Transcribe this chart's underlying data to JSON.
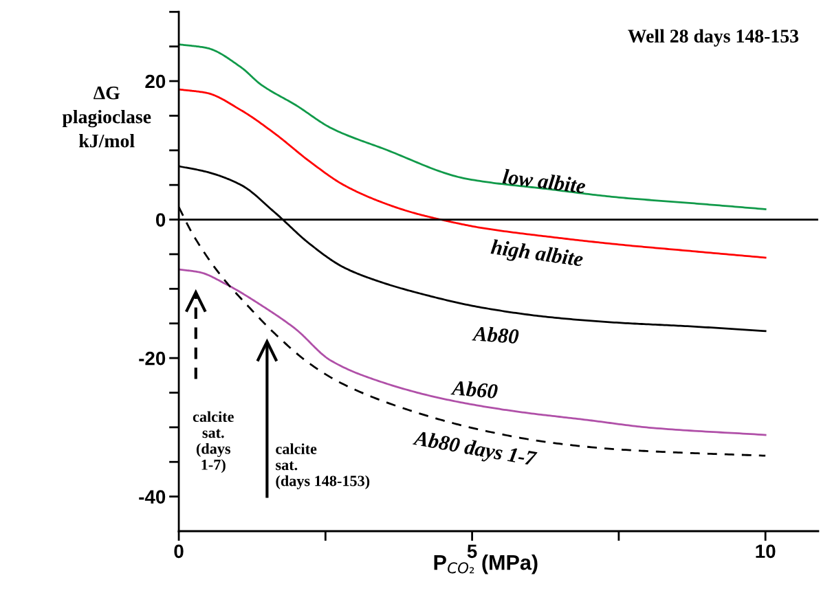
{
  "chart_data": {
    "type": "line",
    "title": "Well 28 days 148-153",
    "xlabel": "P$_{CO₂}$ (MPa)",
    "ylabel": "ΔG\nplagioclase\nkJ/mol",
    "xlim": [
      0,
      10.9
    ],
    "ylim": [
      -45,
      30
    ],
    "xticks": [
      0,
      {
        "value": 2.5,
        "label": null
      },
      5,
      {
        "value": 7.5,
        "label": null
      },
      10
    ],
    "yticks": [
      {
        "value": -40,
        "label": "-40"
      },
      {
        "value": -35,
        "label": null
      },
      {
        "value": -30,
        "label": null
      },
      {
        "value": -25,
        "label": null
      },
      {
        "value": -20,
        "label": "-20"
      },
      {
        "value": -15,
        "label": null
      },
      {
        "value": -10,
        "label": null
      },
      {
        "value": -5,
        "label": null
      },
      0,
      {
        "value": 5,
        "label": null
      },
      {
        "value": 10,
        "label": null
      },
      {
        "value": 15,
        "label": null
      },
      20,
      {
        "value": 25,
        "label": null
      },
      {
        "value": 30,
        "label": null
      }
    ],
    "grid": false,
    "ref_lines": [
      {
        "axis": "y",
        "value": 0,
        "color": "#000000",
        "line_style": "solid"
      }
    ],
    "series": [
      {
        "name": "low albite",
        "color": "#119a4a",
        "x": [
          0,
          0.47,
          1.06,
          1.4,
          2.0,
          2.6,
          3.5,
          4.9,
          6.3,
          7.5,
          8.7,
          10
        ],
        "values": [
          25.3,
          24.8,
          22.0,
          19.5,
          16.5,
          13.2,
          10.2,
          5.9,
          4.4,
          3.2,
          2.4,
          1.5
        ]
      },
      {
        "name": "high albite",
        "color": "#ff0000",
        "x": [
          0,
          0.47,
          1.06,
          1.64,
          2.23,
          2.81,
          3.4,
          3.99,
          4.57,
          5.16,
          6.33,
          7.5,
          8.67,
          10
        ],
        "values": [
          18.8,
          18.3,
          15.8,
          12.4,
          8.4,
          5.0,
          2.7,
          1.0,
          -0.2,
          -1.2,
          -2.5,
          -3.6,
          -4.5,
          -5.5
        ]
      },
      {
        "name": "Ab80",
        "color": "#000000",
        "x": [
          0,
          0.47,
          1.06,
          1.64,
          2.23,
          2.81,
          3.4,
          3.99,
          5.16,
          6.33,
          7.5,
          8.67,
          10
        ],
        "values": [
          7.7,
          6.9,
          5.0,
          1.0,
          -3.5,
          -6.9,
          -8.9,
          -10.4,
          -12.7,
          -14.1,
          -14.9,
          -15.4,
          -16.1
        ]
      },
      {
        "name": "Ab60",
        "color": "#b050a8",
        "x": [
          0,
          0.35,
          0.82,
          1.41,
          1.99,
          2.58,
          3.4,
          4.57,
          5.74,
          6.92,
          8.09,
          10
        ],
        "values": [
          -7.2,
          -7.6,
          -9.4,
          -12.4,
          -15.8,
          -20.3,
          -23.3,
          -26.0,
          -27.7,
          -28.9,
          -30.1,
          -31.1
        ]
      },
      {
        "name": "Ab80 days 1-7",
        "color": "#000000",
        "line_style": "dashed",
        "x": [
          0,
          0.23,
          0.7,
          1.17,
          1.64,
          2.23,
          2.81,
          3.99,
          5.16,
          6.33,
          7.5,
          8.67,
          10
        ],
        "values": [
          1.8,
          -2.0,
          -7.9,
          -12.4,
          -16.5,
          -20.8,
          -23.8,
          -27.7,
          -30.4,
          -32.2,
          -33.2,
          -33.7,
          -34.1
        ]
      }
    ],
    "annotations": [
      "calcite\nsat.\n(days\n1-7)",
      "calcite\nsat.\n(days 148-153)"
    ]
  }
}
